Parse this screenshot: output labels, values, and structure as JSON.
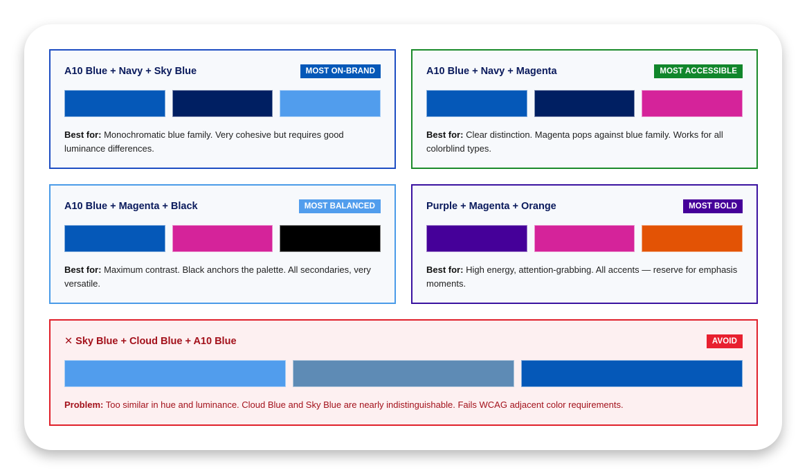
{
  "cards": [
    {
      "title": "A10 Blue + Navy + Sky Blue",
      "badge": "MOST ON-BRAND",
      "badge_color": "#0558b8",
      "border_color": "#1d4dc2",
      "swatches": [
        "#0558b8",
        "#001f62",
        "#519ded"
      ],
      "label": "Best for:",
      "text": " Monochromatic blue family. Very cohesive but requires good luminance differences."
    },
    {
      "title": "A10 Blue + Navy + Magenta",
      "badge": "MOST ACCESSIBLE",
      "badge_color": "#11862b",
      "border_color": "#1a8a2a",
      "swatches": [
        "#0558b8",
        "#001f62",
        "#d5239a"
      ],
      "label": "Best for:",
      "text": " Clear distinction. Magenta pops against blue family. Works for all colorblind types."
    },
    {
      "title": "A10 Blue + Magenta + Black",
      "badge": "MOST BALANCED",
      "badge_color": "#519ded",
      "border_color": "#4a9be8",
      "swatches": [
        "#0558b8",
        "#d5239a",
        "#000000"
      ],
      "label": "Best for:",
      "text": " Maximum contrast. Black anchors the palette. All secondaries, very versatile."
    },
    {
      "title": "Purple + Magenta + Orange",
      "badge": "MOST BOLD",
      "badge_color": "#450099",
      "border_color": "#3a12a0",
      "swatches": [
        "#450099",
        "#d5239a",
        "#e35305"
      ],
      "label": "Best for:",
      "text": " High energy, attention-grabbing. All accents — reserve for emphasis moments."
    }
  ],
  "avoid": {
    "icon": "close-icon",
    "title": "✕ Sky Blue + Cloud Blue + A10 Blue",
    "badge": "AVOID",
    "badge_color": "#e8202f",
    "border_color": "#e0202a",
    "swatches": [
      "#519ded",
      "#5e8bb5",
      "#0558b8"
    ],
    "label": "Problem:",
    "text": " Too similar in hue and luminance. Cloud Blue and Sky Blue are nearly indistinguishable. Fails WCAG adjacent color requirements."
  }
}
